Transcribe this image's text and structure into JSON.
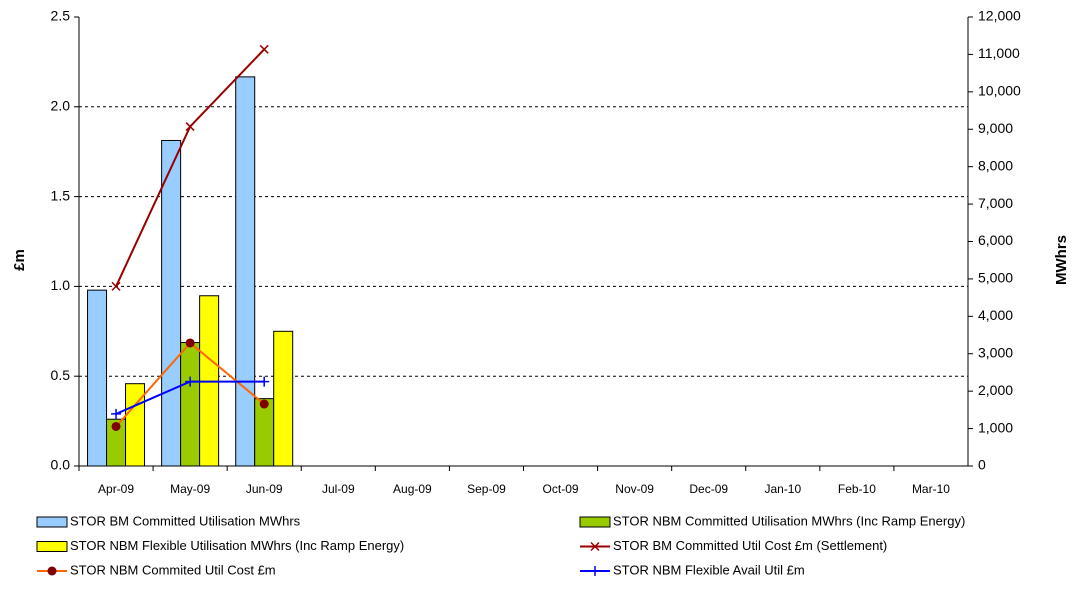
{
  "chart_data": {
    "type": "combo",
    "y_label": "£m",
    "y2_label": "MWhrs",
    "categories": [
      "Apr-09",
      "May-09",
      "Jun-09",
      "Jul-09",
      "Aug-09",
      "Sep-09",
      "Oct-09",
      "Nov-09",
      "Dec-09",
      "Jan-10",
      "Feb-10",
      "Mar-10"
    ],
    "ylim": [
      0,
      2.5
    ],
    "yticks": [
      {
        "value": 0,
        "label": "0.0"
      },
      0.5,
      {
        "value": 1,
        "label": "1.0"
      },
      1.5,
      {
        "value": 2,
        "label": "2.0"
      },
      2.5
    ],
    "y2lim": [
      0,
      12000
    ],
    "y2ticks": [
      0,
      {
        "value": 1000,
        "label": "1,000"
      },
      {
        "value": 2000,
        "label": "2,000"
      },
      {
        "value": 3000,
        "label": "3,000"
      },
      {
        "value": 4000,
        "label": "4,000"
      },
      {
        "value": 5000,
        "label": "5,000"
      },
      {
        "value": 6000,
        "label": "6,000"
      },
      {
        "value": 7000,
        "label": "7,000"
      },
      {
        "value": 8000,
        "label": "8,000"
      },
      {
        "value": 9000,
        "label": "9,000"
      },
      {
        "value": 10000,
        "label": "10,000"
      },
      {
        "value": 11000,
        "label": "11,000"
      },
      {
        "value": 12000,
        "label": "12,000"
      }
    ],
    "grid": true,
    "legend": "bottom",
    "series": [
      {
        "name": "STOR BM  Committed Utilisation MWhrs",
        "type": "bar",
        "axis": "y2",
        "color": "#99ccff",
        "values": [
          4700,
          8700,
          10400,
          null,
          null,
          null,
          null,
          null,
          null,
          null,
          null,
          null
        ]
      },
      {
        "name": "STOR NBM Committed Utilisation MWhrs (Inc Ramp Energy)",
        "type": "bar",
        "axis": "y2",
        "color": "#99cc00",
        "values": [
          1250,
          3300,
          1800,
          null,
          null,
          null,
          null,
          null,
          null,
          null,
          null,
          null
        ]
      },
      {
        "name": "STOR NBM Flexible Utilisation MWhrs (Inc Ramp Energy)",
        "type": "bar",
        "axis": "y2",
        "color": "#ffff00",
        "values": [
          2200,
          4550,
          3600,
          null,
          null,
          null,
          null,
          null,
          null,
          null,
          null,
          null
        ]
      },
      {
        "name": "STOR BM  Committed Util Cost £m (Settlement)",
        "type": "line",
        "color": "#990000",
        "marker": "x",
        "values": [
          1.0,
          1.89,
          2.32,
          null,
          null,
          null,
          null,
          null,
          null,
          null,
          null,
          null
        ]
      },
      {
        "name": "STOR NBM Commited Util Cost £m",
        "type": "line",
        "color": "#ff6600",
        "marker": "circle",
        "marker_color": "#800000",
        "values": [
          0.22,
          0.685,
          0.345,
          null,
          null,
          null,
          null,
          null,
          null,
          null,
          null,
          null
        ]
      },
      {
        "name": "STOR NBM Flexible Avail Util  £m",
        "type": "line",
        "color": "#0000ff",
        "marker": "plus",
        "values": [
          0.29,
          0.47,
          0.47,
          null,
          null,
          null,
          null,
          null,
          null,
          null,
          null,
          null
        ]
      }
    ]
  }
}
